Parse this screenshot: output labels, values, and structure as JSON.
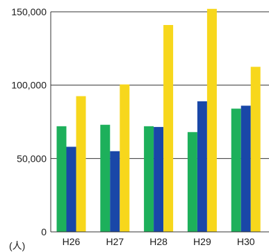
{
  "chart_data": {
    "type": "bar",
    "categories": [
      "H26",
      "H27",
      "H28",
      "H29",
      "H30"
    ],
    "series": [
      {
        "values": [
          72000,
          73000,
          72000,
          68000,
          84000
        ]
      },
      {
        "values": [
          58000,
          55000,
          71500,
          89000,
          86000
        ]
      },
      {
        "values": [
          92500,
          100500,
          141000,
          152000,
          112500
        ]
      }
    ],
    "colors": [
      "#1db05b",
      "#1947a8",
      "#f7d71c"
    ],
    "yticks": [
      "150,000",
      "100,000",
      "50,000",
      "0"
    ],
    "ytick_values": [
      150000,
      100000,
      50000,
      0
    ],
    "ylim": [
      0,
      150000
    ],
    "ylabel": "(人)",
    "grid": true
  }
}
